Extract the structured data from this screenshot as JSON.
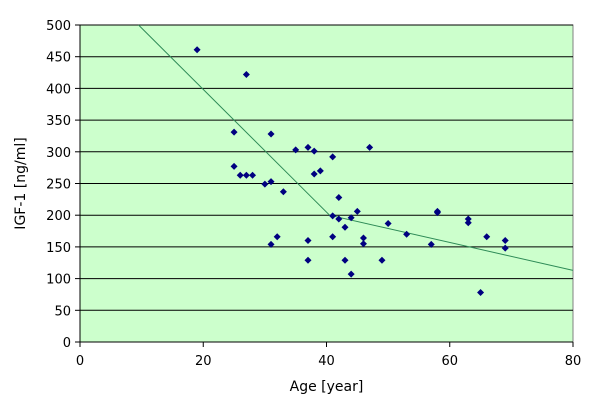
{
  "colors": {
    "plot_background": "#ccffcc",
    "gridline": "#000000",
    "marker": "#000080",
    "trendline": "#2e8b57"
  },
  "chart_data": {
    "type": "scatter",
    "title": "",
    "xlabel": "Age [year]",
    "ylabel": "IGF-1 [ng/ml]",
    "xlim": [
      0,
      80
    ],
    "ylim": [
      0,
      500
    ],
    "x_ticks": [
      0,
      20,
      40,
      60,
      80
    ],
    "y_ticks": [
      0,
      50,
      100,
      150,
      200,
      250,
      300,
      350,
      400,
      450,
      500
    ],
    "grid": "horizontal",
    "legend": "none",
    "marker": "diamond",
    "points": [
      [
        19,
        461
      ],
      [
        27,
        422
      ],
      [
        25,
        331
      ],
      [
        31,
        328
      ],
      [
        25,
        277
      ],
      [
        26,
        263
      ],
      [
        27,
        263
      ],
      [
        28,
        263
      ],
      [
        30,
        249
      ],
      [
        31,
        253
      ],
      [
        33,
        237
      ],
      [
        35,
        303
      ],
      [
        37,
        307
      ],
      [
        38,
        301
      ],
      [
        41,
        292
      ],
      [
        38,
        265
      ],
      [
        39,
        270
      ],
      [
        47,
        307
      ],
      [
        42,
        228
      ],
      [
        41,
        199
      ],
      [
        42,
        194
      ],
      [
        44,
        196
      ],
      [
        45,
        206
      ],
      [
        43,
        181
      ],
      [
        41,
        166
      ],
      [
        46,
        164
      ],
      [
        46,
        155
      ],
      [
        31,
        154
      ],
      [
        32,
        166
      ],
      [
        37,
        160
      ],
      [
        37,
        129
      ],
      [
        43,
        129
      ],
      [
        44,
        107
      ],
      [
        49,
        129
      ],
      [
        50,
        187
      ],
      [
        53,
        170
      ],
      [
        57,
        154
      ],
      [
        58,
        206
      ],
      [
        58,
        204
      ],
      [
        63,
        194
      ],
      [
        63,
        188
      ],
      [
        66,
        166
      ],
      [
        69,
        160
      ],
      [
        69,
        148
      ],
      [
        65,
        78
      ]
    ],
    "trendline": {
      "type": "piecewise-linear",
      "points": [
        [
          9.5,
          500
        ],
        [
          40.5,
          200
        ],
        [
          80,
          113
        ]
      ]
    }
  }
}
